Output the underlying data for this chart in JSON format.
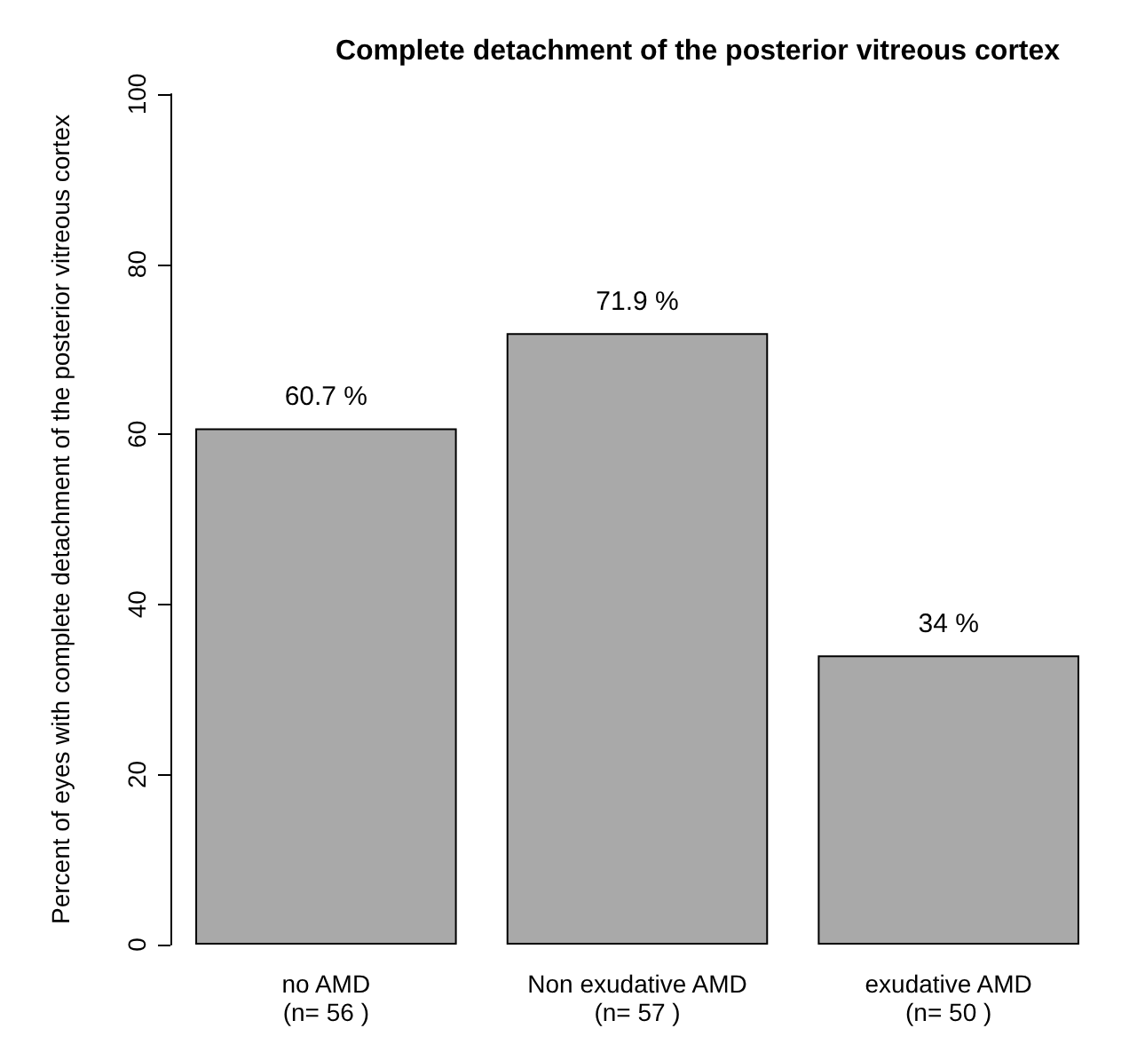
{
  "chart_data": {
    "type": "bar",
    "title": "Complete detachment of the posterior vitreous cortex",
    "ylabel": "Percent of eyes with complete detachment of the posterior vitreous cortex",
    "categories": [
      "no AMD\n(n= 56 )",
      "Non exudative AMD\n(n= 57 )",
      "exudative AMD\n(n= 50 )"
    ],
    "values": [
      60.7,
      71.9,
      34
    ],
    "value_labels": [
      "60.7 %",
      "71.9 %",
      "34 %"
    ],
    "color": "#a9a9a9",
    "ylim": [
      0,
      100
    ],
    "yticks": [
      0,
      20,
      40,
      60,
      80,
      100
    ],
    "grid": false
  }
}
